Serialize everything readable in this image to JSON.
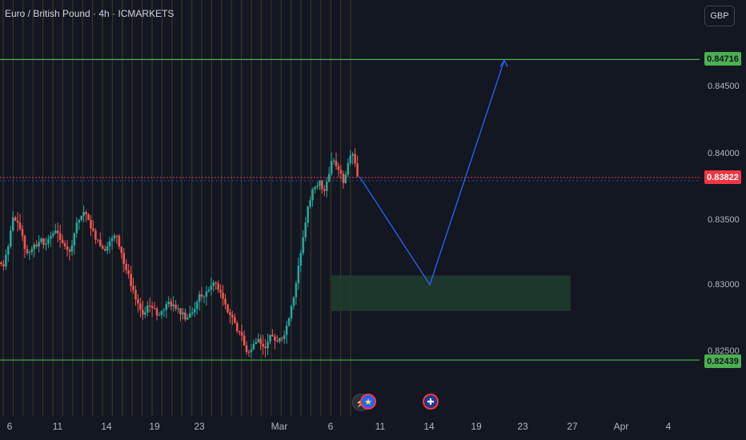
{
  "header": {
    "symbol_title": "Euro / British Pound · 4h · ICMARKETS"
  },
  "currency_button": {
    "label": "GBP"
  },
  "colors": {
    "background": "#131722",
    "bull": "#26a69a",
    "bear": "#ef5350",
    "support_line": "#4caf50",
    "resistance_line": "#4caf50",
    "current_price": "#f23645",
    "projection": "#2962ff",
    "zone": "#1e3d2d",
    "session_stripe": "#3b3320"
  },
  "price_labels": {
    "resistance": "0.84716",
    "current": "0.83822",
    "support": "0.82439"
  },
  "y_axis": {
    "ticks": [
      "0.84500",
      "0.84000",
      "0.83500",
      "0.83000",
      "0.82500"
    ]
  },
  "x_axis": {
    "ticks": [
      "6",
      "11",
      "14",
      "19",
      "23",
      "Mar",
      "6",
      "11",
      "14",
      "19",
      "23",
      "27",
      "Apr",
      "4"
    ]
  },
  "events": [
    {
      "name": "lightning-event-icon",
      "symbol": "⚡"
    },
    {
      "name": "eu-flag-event-icon",
      "symbol": "★"
    },
    {
      "name": "uk-flag-event-icon",
      "symbol": "✚"
    }
  ],
  "chart_data": {
    "type": "candlestick",
    "title": "Euro / British Pound · 4h · ICMARKETS",
    "x_ticks": [
      "6",
      "11",
      "14",
      "19",
      "23",
      "Mar",
      "6",
      "11",
      "14",
      "19",
      "23",
      "27",
      "Apr",
      "4"
    ],
    "y_ticks": [
      0.845,
      0.84,
      0.835,
      0.83,
      0.825
    ],
    "ylim": [
      0.8232,
      0.8509
    ],
    "levels": {
      "resistance": 0.84716,
      "current": 0.83822,
      "support": 0.82439
    },
    "demand_zone": {
      "price_low": 0.8281,
      "price_high": 0.8308
    },
    "projection_path": [
      {
        "date": "Mar 8",
        "price": 0.8383
      },
      {
        "date": "Mar 14",
        "price": 0.8301
      },
      {
        "date": "Mar 21",
        "price": 0.8471
      }
    ],
    "close_path": [
      0.8315,
      0.833,
      0.8352,
      0.8348,
      0.8338,
      0.8325,
      0.8328,
      0.833,
      0.8336,
      0.8332,
      0.8338,
      0.8342,
      0.8335,
      0.833,
      0.8326,
      0.834,
      0.835,
      0.8356,
      0.835,
      0.8342,
      0.8335,
      0.8328,
      0.833,
      0.8336,
      0.8338,
      0.8325,
      0.8312,
      0.83,
      0.829,
      0.8282,
      0.828,
      0.8285,
      0.8283,
      0.8278,
      0.8282,
      0.8288,
      0.8286,
      0.8283,
      0.828,
      0.8276,
      0.828,
      0.8288,
      0.8292,
      0.8296,
      0.83,
      0.8302,
      0.8295,
      0.8286,
      0.8278,
      0.8272,
      0.8265,
      0.8255,
      0.825,
      0.8256,
      0.826,
      0.8254,
      0.8258,
      0.8262,
      0.8258,
      0.826,
      0.827,
      0.8285,
      0.8302,
      0.8325,
      0.8348,
      0.8365,
      0.8375,
      0.838,
      0.8372,
      0.8385,
      0.8395,
      0.8388,
      0.8378,
      0.8393,
      0.84,
      0.8383
    ]
  }
}
